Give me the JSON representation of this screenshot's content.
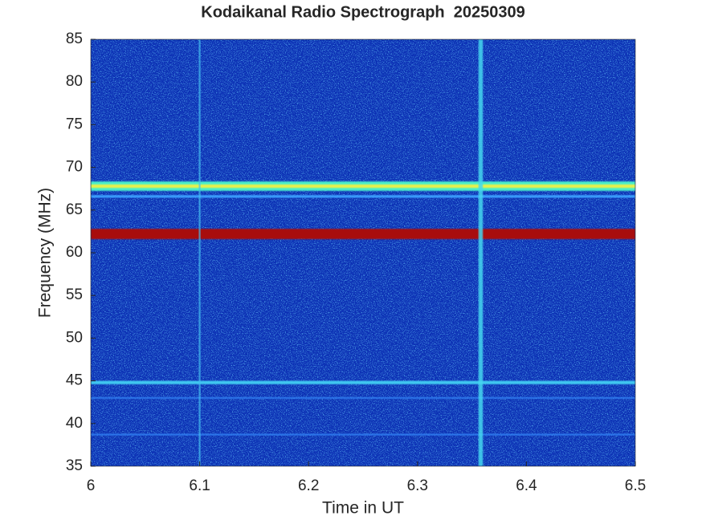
{
  "chart_data": {
    "type": "spectrogram",
    "title": "Kodaikanal Radio Spectrograph  20250309",
    "x_label": "Time in UT",
    "y_label": "Frequency (MHz)",
    "xlim": [
      6,
      6.5
    ],
    "xticks": [
      6,
      6.1,
      6.2,
      6.3,
      6.4,
      6.5
    ],
    "ylim": [
      35,
      85
    ],
    "yticks": [
      35,
      40,
      45,
      50,
      55,
      60,
      65,
      70,
      75,
      80,
      85
    ],
    "background": "#0b2fb4",
    "bands": [
      {
        "freq": 67.8,
        "width": 1.1,
        "color": "#49f0c8"
      },
      {
        "freq": 67.8,
        "width": 0.4,
        "color": "#e8f04a"
      },
      {
        "freq": 66.6,
        "width": 0.3,
        "color": "#3aa0ff"
      },
      {
        "freq": 62.2,
        "width": 1.2,
        "color": "#a80f10"
      },
      {
        "freq": 44.8,
        "width": 0.4,
        "color": "#40c8f0"
      },
      {
        "freq": 43.0,
        "width": 0.2,
        "color": "#2e7cf0"
      },
      {
        "freq": 38.7,
        "width": 0.2,
        "color": "#2e7cf0"
      }
    ],
    "bursts": [
      {
        "time": 6.358,
        "width": 0.004,
        "color": "#45d8f0"
      },
      {
        "time": 6.1,
        "width": 0.0015,
        "color": "#45c0f0"
      }
    ]
  }
}
